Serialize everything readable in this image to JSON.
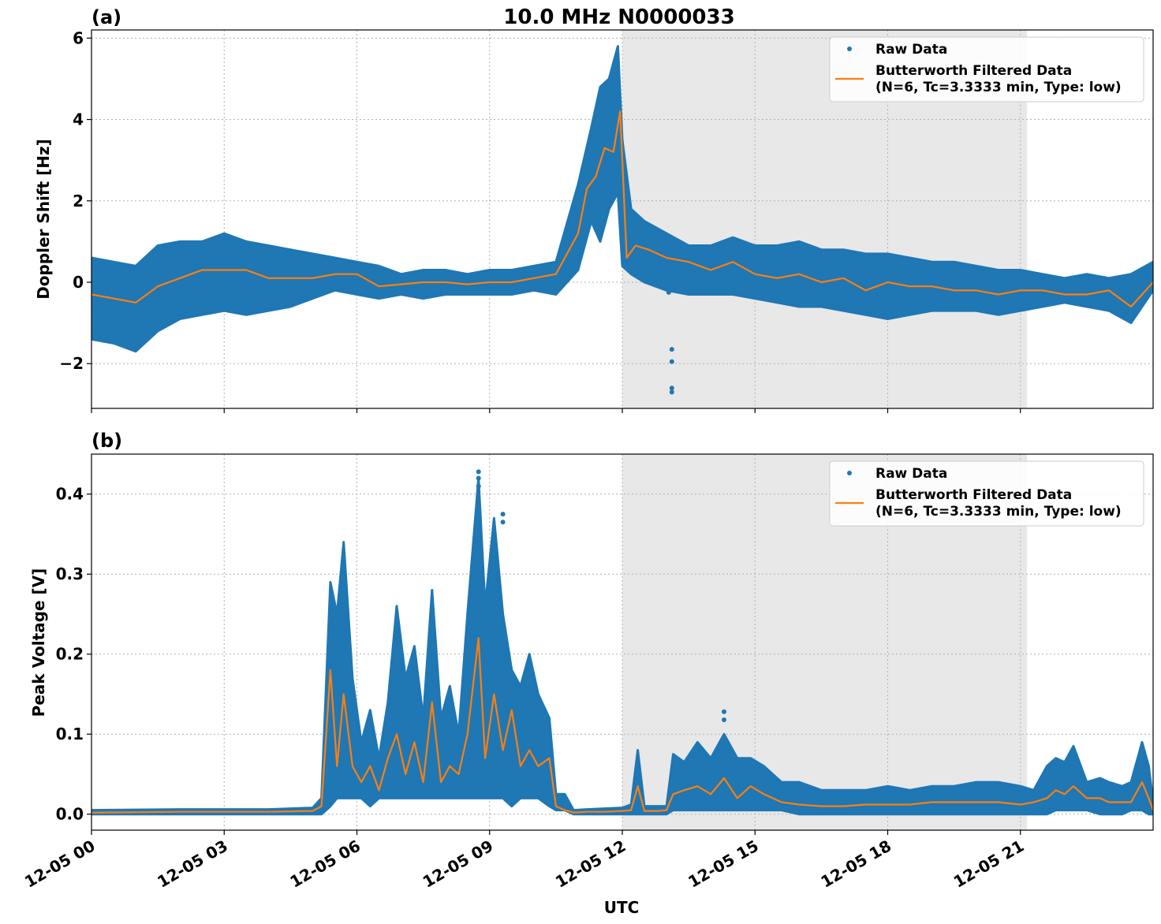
{
  "figure": {
    "title": "10.0 MHz N0000033",
    "xlabel": "UTC",
    "x_ticks": [
      "12-05 00",
      "12-05 03",
      "12-05 06",
      "12-05 09",
      "12-05 12",
      "12-05 15",
      "12-05 18",
      "12-05 21"
    ],
    "colors": {
      "raw": "#1f77b4",
      "filtered": "#ff7f0e",
      "shade": "#e8e8e8",
      "grid": "#b0b0b0"
    }
  },
  "chart_data": [
    {
      "type": "scatter",
      "panel_label": "(a)",
      "title": "10.0 MHz N0000033",
      "xlabel": "",
      "ylabel": "Doppler Shift [Hz]",
      "x_unit": "hours after 12-05 00 UTC",
      "xlim": [
        0,
        24
      ],
      "ylim": [
        -3.1,
        6.2
      ],
      "y_ticks": [
        -2,
        0,
        2,
        4,
        6
      ],
      "y_tick_labels": [
        "−2",
        "0",
        "2",
        "4",
        "6"
      ],
      "grid": true,
      "shaded_region": [
        12.0,
        21.15
      ],
      "legend": {
        "placement": "top-right",
        "raw_label": "Raw Data",
        "filtered_label_1": "Butterworth Filtered Data",
        "filtered_label_2": "(N=6, Tc=3.3333 min, Type: low)"
      },
      "series": [
        {
          "name": "Raw Data",
          "style": "band",
          "x": [
            0,
            0.5,
            1,
            1.5,
            2,
            2.5,
            3,
            3.5,
            4,
            4.5,
            5,
            5.5,
            6,
            6.5,
            7,
            7.5,
            8,
            8.5,
            9,
            9.5,
            10,
            10.5,
            11,
            11.3,
            11.5,
            11.7,
            11.9,
            12,
            12.2,
            12.5,
            13,
            13.5,
            14,
            14.5,
            15,
            15.5,
            16,
            16.5,
            17,
            17.5,
            18,
            18.5,
            19,
            19.5,
            20,
            20.5,
            21,
            21.5,
            22,
            22.5,
            23,
            23.5,
            24
          ],
          "upper": [
            0.6,
            0.5,
            0.4,
            0.9,
            1.0,
            1.0,
            1.2,
            1.0,
            0.9,
            0.8,
            0.7,
            0.6,
            0.5,
            0.4,
            0.2,
            0.3,
            0.3,
            0.2,
            0.3,
            0.3,
            0.4,
            0.5,
            2.4,
            3.8,
            4.8,
            5.0,
            5.8,
            3.5,
            1.8,
            1.5,
            1.2,
            0.9,
            0.9,
            1.1,
            0.9,
            0.9,
            1.0,
            0.8,
            0.8,
            0.7,
            0.7,
            0.6,
            0.5,
            0.5,
            0.4,
            0.3,
            0.3,
            0.2,
            0.1,
            0.2,
            0.1,
            0.2,
            0.5
          ],
          "lower": [
            -1.4,
            -1.5,
            -1.7,
            -1.2,
            -0.9,
            -0.8,
            -0.7,
            -0.8,
            -0.7,
            -0.6,
            -0.4,
            -0.2,
            -0.3,
            -0.4,
            -0.3,
            -0.4,
            -0.3,
            -0.3,
            -0.3,
            -0.3,
            -0.2,
            -0.3,
            0.3,
            1.5,
            1.0,
            1.8,
            2.2,
            0.4,
            0.2,
            0.0,
            -0.2,
            -0.3,
            -0.3,
            -0.3,
            -0.4,
            -0.5,
            -0.6,
            -0.6,
            -0.7,
            -0.8,
            -0.9,
            -0.8,
            -0.7,
            -0.7,
            -0.7,
            -0.8,
            -0.7,
            -0.6,
            -0.5,
            -0.6,
            -0.7,
            -1.0,
            -0.2
          ]
        },
        {
          "name": "Raw Data outliers",
          "style": "points",
          "x": [
            13.12,
            13.12,
            13.12,
            13.12,
            12.98,
            13.05
          ],
          "y": [
            -1.65,
            -1.95,
            -2.6,
            -2.7,
            -0.1,
            -0.25
          ]
        },
        {
          "name": "Butterworth Filtered Data",
          "style": "line",
          "x": [
            0,
            0.5,
            1,
            1.5,
            2,
            2.5,
            3,
            3.5,
            4,
            4.5,
            5,
            5.5,
            6,
            6.5,
            7,
            7.5,
            8,
            8.5,
            9,
            9.5,
            10,
            10.5,
            11,
            11.2,
            11.4,
            11.6,
            11.8,
            11.95,
            12.1,
            12.3,
            12.6,
            13,
            13.5,
            14,
            14.5,
            15,
            15.5,
            16,
            16.5,
            17,
            17.5,
            18,
            18.5,
            19,
            19.5,
            20,
            20.5,
            21,
            21.5,
            22,
            22.5,
            23,
            23.5,
            24
          ],
          "y": [
            -0.3,
            -0.4,
            -0.5,
            -0.1,
            0.1,
            0.3,
            0.3,
            0.3,
            0.1,
            0.1,
            0.1,
            0.2,
            0.2,
            -0.1,
            -0.05,
            0.0,
            0.0,
            -0.05,
            0.0,
            0.0,
            0.1,
            0.2,
            1.2,
            2.3,
            2.6,
            3.3,
            3.2,
            4.2,
            0.6,
            0.9,
            0.8,
            0.6,
            0.5,
            0.3,
            0.5,
            0.2,
            0.1,
            0.2,
            0.0,
            0.1,
            -0.2,
            0.0,
            -0.1,
            -0.1,
            -0.2,
            -0.2,
            -0.3,
            -0.2,
            -0.2,
            -0.3,
            -0.3,
            -0.2,
            -0.6,
            0.0
          ]
        }
      ]
    },
    {
      "type": "scatter",
      "panel_label": "(b)",
      "title": "",
      "xlabel": "UTC",
      "ylabel": "Peak Voltage [V]",
      "x_unit": "hours after 12-05 00 UTC",
      "xlim": [
        0,
        24
      ],
      "ylim": [
        -0.02,
        0.45
      ],
      "y_ticks": [
        0.0,
        0.1,
        0.2,
        0.3,
        0.4
      ],
      "y_tick_labels": [
        "0.0",
        "0.1",
        "0.2",
        "0.3",
        "0.4"
      ],
      "grid": true,
      "shaded_region": [
        12.0,
        21.15
      ],
      "legend": {
        "placement": "top-right",
        "raw_label": "Raw Data",
        "filtered_label_1": "Butterworth Filtered Data",
        "filtered_label_2": "(N=6, Tc=3.3333 min, Type: low)"
      },
      "series": [
        {
          "name": "Raw Data",
          "style": "band",
          "x": [
            0,
            2,
            4,
            5,
            5.2,
            5.4,
            5.55,
            5.7,
            5.9,
            6.1,
            6.3,
            6.5,
            6.7,
            6.9,
            7.1,
            7.3,
            7.5,
            7.7,
            7.9,
            8.1,
            8.3,
            8.5,
            8.75,
            8.9,
            9.1,
            9.3,
            9.5,
            9.7,
            9.9,
            10.1,
            10.35,
            10.5,
            10.7,
            10.9,
            11.2,
            11.6,
            12.0,
            12.2,
            12.35,
            12.5,
            12.8,
            13.0,
            13.15,
            13.4,
            13.7,
            14.0,
            14.3,
            14.6,
            14.9,
            15.2,
            15.6,
            16,
            16.5,
            17,
            17.5,
            18,
            18.5,
            19,
            19.5,
            20,
            20.5,
            21,
            21.3,
            21.6,
            21.8,
            22,
            22.2,
            22.5,
            22.8,
            23,
            23.3,
            23.5,
            23.75,
            23.9,
            24
          ],
          "upper": [
            0.005,
            0.006,
            0.006,
            0.008,
            0.02,
            0.29,
            0.25,
            0.34,
            0.17,
            0.09,
            0.13,
            0.07,
            0.14,
            0.26,
            0.17,
            0.21,
            0.12,
            0.28,
            0.12,
            0.16,
            0.1,
            0.25,
            0.42,
            0.26,
            0.37,
            0.25,
            0.18,
            0.16,
            0.2,
            0.15,
            0.12,
            0.025,
            0.025,
            0.005,
            0.006,
            0.007,
            0.008,
            0.012,
            0.08,
            0.01,
            0.01,
            0.01,
            0.075,
            0.065,
            0.09,
            0.07,
            0.1,
            0.07,
            0.07,
            0.06,
            0.04,
            0.04,
            0.03,
            0.03,
            0.03,
            0.035,
            0.03,
            0.035,
            0.035,
            0.04,
            0.04,
            0.035,
            0.03,
            0.06,
            0.07,
            0.065,
            0.085,
            0.04,
            0.045,
            0.04,
            0.035,
            0.04,
            0.09,
            0.06,
            0.015
          ],
          "lower": [
            0.0,
            0.0,
            0.0,
            0.0,
            0.0,
            0.01,
            0.02,
            0.02,
            0.02,
            0.02,
            0.01,
            0.02,
            0.02,
            0.02,
            0.02,
            0.02,
            0.02,
            0.02,
            0.02,
            0.02,
            0.02,
            0.02,
            0.02,
            0.02,
            0.02,
            0.02,
            0.01,
            0.02,
            0.02,
            0.02,
            0.01,
            0.005,
            0.005,
            0.0,
            0.0,
            0.0,
            0.0,
            0.0,
            0.0,
            0.0,
            0.0,
            0.0,
            0.005,
            0.005,
            0.005,
            0.005,
            0.005,
            0.005,
            0.005,
            0.005,
            0.005,
            0.0,
            0.0,
            0.0,
            0.0,
            0.0,
            0.0,
            0.0,
            0.0,
            0.0,
            0.0,
            0.0,
            0.0,
            0.0,
            0.005,
            0.005,
            0.005,
            0.005,
            0.0,
            0.0,
            0.0,
            0.005,
            0.005,
            0.0,
            0.0
          ]
        },
        {
          "name": "Raw Data outliers",
          "style": "points",
          "x": [
            8.75,
            8.75,
            8.75,
            9.3,
            9.3,
            14.3,
            14.3
          ],
          "y": [
            0.428,
            0.42,
            0.41,
            0.375,
            0.365,
            0.128,
            0.118
          ]
        },
        {
          "name": "Butterworth Filtered Data",
          "style": "line",
          "x": [
            0,
            2,
            4,
            5,
            5.2,
            5.4,
            5.55,
            5.7,
            5.9,
            6.1,
            6.3,
            6.5,
            6.7,
            6.9,
            7.1,
            7.3,
            7.5,
            7.7,
            7.9,
            8.1,
            8.3,
            8.5,
            8.75,
            8.9,
            9.1,
            9.3,
            9.5,
            9.7,
            9.9,
            10.1,
            10.35,
            10.5,
            10.7,
            10.9,
            11.2,
            11.6,
            12.0,
            12.2,
            12.35,
            12.5,
            12.8,
            13.0,
            13.15,
            13.4,
            13.7,
            14.0,
            14.3,
            14.6,
            14.9,
            15.2,
            15.6,
            16,
            16.5,
            17,
            17.5,
            18,
            18.5,
            19,
            19.5,
            20,
            20.5,
            21,
            21.3,
            21.6,
            21.8,
            22,
            22.2,
            22.5,
            22.8,
            23,
            23.3,
            23.5,
            23.75,
            23.9,
            24
          ],
          "y": [
            0.002,
            0.003,
            0.003,
            0.004,
            0.01,
            0.18,
            0.06,
            0.15,
            0.06,
            0.04,
            0.06,
            0.03,
            0.07,
            0.1,
            0.05,
            0.09,
            0.04,
            0.14,
            0.04,
            0.06,
            0.05,
            0.1,
            0.22,
            0.07,
            0.15,
            0.08,
            0.13,
            0.06,
            0.08,
            0.06,
            0.07,
            0.01,
            0.005,
            0.002,
            0.003,
            0.003,
            0.004,
            0.005,
            0.035,
            0.004,
            0.004,
            0.005,
            0.025,
            0.03,
            0.035,
            0.025,
            0.045,
            0.02,
            0.035,
            0.025,
            0.015,
            0.012,
            0.01,
            0.01,
            0.012,
            0.012,
            0.012,
            0.015,
            0.015,
            0.015,
            0.015,
            0.012,
            0.015,
            0.02,
            0.03,
            0.025,
            0.035,
            0.02,
            0.02,
            0.015,
            0.015,
            0.015,
            0.04,
            0.02,
            0.005
          ]
        }
      ]
    }
  ]
}
